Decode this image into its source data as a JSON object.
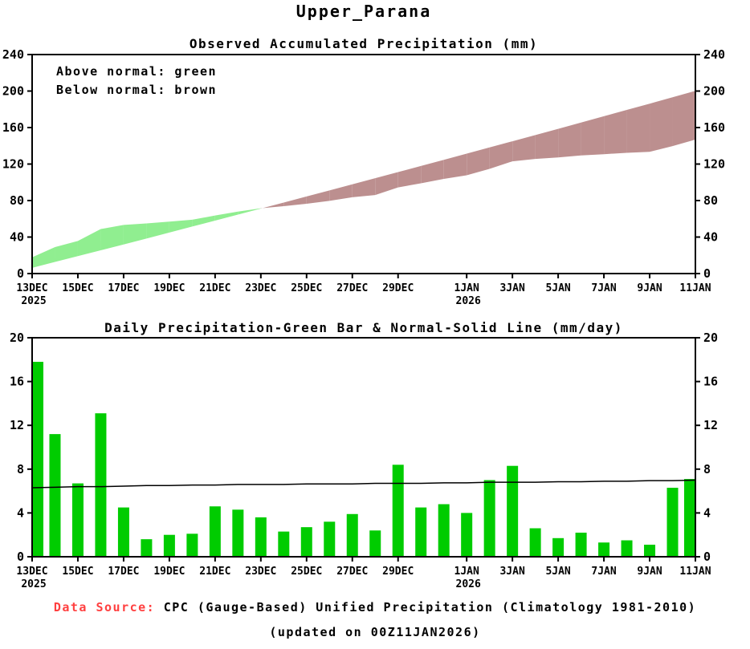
{
  "page_title": "Upper_Parana",
  "footer": {
    "source_label": "Data Source:",
    "source_text": " CPC (Gauge-Based) Unified Precipitation (Climatology 1981-2010)",
    "updated": "(updated on 00Z11JAN2026)"
  },
  "chart_data": [
    {
      "type": "area",
      "title": "Observed Accumulated Precipitation (mm)",
      "legend": [
        "Above normal: green",
        "Below normal: brown"
      ],
      "colors": {
        "above_normal": "#90ee90",
        "below_normal": "#bc8f8f"
      },
      "ylim": [
        0,
        240
      ],
      "yticks": [
        0,
        40,
        80,
        120,
        160,
        200,
        240
      ],
      "dates": [
        "13DEC",
        "14DEC",
        "15DEC",
        "16DEC",
        "17DEC",
        "18DEC",
        "19DEC",
        "20DEC",
        "21DEC",
        "22DEC",
        "23DEC",
        "24DEC",
        "25DEC",
        "26DEC",
        "27DEC",
        "28DEC",
        "29DEC",
        "30DEC",
        "31DEC",
        "1JAN",
        "2JAN",
        "3JAN",
        "4JAN",
        "5JAN",
        "6JAN",
        "7JAN",
        "8JAN",
        "9JAN",
        "10JAN",
        "11JAN"
      ],
      "xticks": [
        {
          "index": 0,
          "label": "13DEC",
          "year": "2025"
        },
        {
          "index": 2,
          "label": "15DEC"
        },
        {
          "index": 4,
          "label": "17DEC"
        },
        {
          "index": 6,
          "label": "19DEC"
        },
        {
          "index": 8,
          "label": "21DEC"
        },
        {
          "index": 10,
          "label": "23DEC"
        },
        {
          "index": 12,
          "label": "25DEC"
        },
        {
          "index": 14,
          "label": "27DEC"
        },
        {
          "index": 16,
          "label": "29DEC"
        },
        {
          "index": 19,
          "label": "1JAN",
          "year": "2026"
        },
        {
          "index": 21,
          "label": "3JAN"
        },
        {
          "index": 23,
          "label": "5JAN"
        },
        {
          "index": 25,
          "label": "7JAN"
        },
        {
          "index": 27,
          "label": "9JAN"
        },
        {
          "index": 29,
          "label": "11JAN"
        }
      ],
      "series": [
        {
          "name": "Observed accumulated precipitation (mm)",
          "values": [
            17.8,
            29.0,
            35.7,
            48.8,
            53.3,
            54.9,
            56.9,
            59.0,
            63.6,
            67.9,
            71.5,
            73.8,
            76.5,
            79.7,
            83.6,
            86.0,
            94.4,
            98.9,
            103.7,
            107.7,
            114.7,
            123.0,
            125.6,
            127.3,
            129.5,
            130.8,
            132.3,
            133.4,
            139.7,
            146.8
          ]
        },
        {
          "name": "Normal accumulated precipitation (mm)",
          "values": [
            6.3,
            12.7,
            19.1,
            25.5,
            31.9,
            38.4,
            44.9,
            51.5,
            58.0,
            64.6,
            71.2,
            77.8,
            84.5,
            91.1,
            97.8,
            104.5,
            111.2,
            117.9,
            124.6,
            131.4,
            138.2,
            145.0,
            151.8,
            158.6,
            165.5,
            172.4,
            179.3,
            186.2,
            193.2,
            200.2
          ]
        }
      ]
    },
    {
      "type": "bar",
      "title": "Daily Precipitation-Green Bar & Normal-Solid Line (mm/day)",
      "colors": {
        "bar": "#00cc00",
        "line": "#000000"
      },
      "ylim": [
        0,
        20
      ],
      "yticks": [
        0,
        4,
        8,
        12,
        16,
        20
      ],
      "dates": [
        "13DEC",
        "14DEC",
        "15DEC",
        "16DEC",
        "17DEC",
        "18DEC",
        "19DEC",
        "20DEC",
        "21DEC",
        "22DEC",
        "23DEC",
        "24DEC",
        "25DEC",
        "26DEC",
        "27DEC",
        "28DEC",
        "29DEC",
        "30DEC",
        "31DEC",
        "1JAN",
        "2JAN",
        "3JAN",
        "4JAN",
        "5JAN",
        "6JAN",
        "7JAN",
        "8JAN",
        "9JAN",
        "10JAN",
        "11JAN"
      ],
      "xticks": [
        {
          "index": 0,
          "label": "13DEC",
          "year": "2025"
        },
        {
          "index": 2,
          "label": "15DEC"
        },
        {
          "index": 4,
          "label": "17DEC"
        },
        {
          "index": 6,
          "label": "19DEC"
        },
        {
          "index": 8,
          "label": "21DEC"
        },
        {
          "index": 10,
          "label": "23DEC"
        },
        {
          "index": 12,
          "label": "25DEC"
        },
        {
          "index": 14,
          "label": "27DEC"
        },
        {
          "index": 16,
          "label": "29DEC"
        },
        {
          "index": 19,
          "label": "1JAN",
          "year": "2026"
        },
        {
          "index": 21,
          "label": "3JAN"
        },
        {
          "index": 23,
          "label": "5JAN"
        },
        {
          "index": 25,
          "label": "7JAN"
        },
        {
          "index": 27,
          "label": "9JAN"
        },
        {
          "index": 29,
          "label": "11JAN"
        }
      ],
      "series": [
        {
          "name": "Daily precipitation (mm/day)",
          "values": [
            17.8,
            11.2,
            6.7,
            13.1,
            4.5,
            1.6,
            2.0,
            2.1,
            4.6,
            4.3,
            3.6,
            2.3,
            2.7,
            3.2,
            3.9,
            2.4,
            8.4,
            4.5,
            4.8,
            4.0,
            7.0,
            8.3,
            2.6,
            1.7,
            2.2,
            1.3,
            1.5,
            1.1,
            6.3,
            7.1
          ]
        },
        {
          "name": "Normal precipitation (mm/day)",
          "values": [
            6.3,
            6.35,
            6.4,
            6.4,
            6.45,
            6.5,
            6.5,
            6.55,
            6.55,
            6.6,
            6.6,
            6.6,
            6.65,
            6.65,
            6.65,
            6.7,
            6.7,
            6.7,
            6.75,
            6.75,
            6.8,
            6.8,
            6.8,
            6.85,
            6.85,
            6.9,
            6.9,
            6.95,
            6.95,
            7.0
          ]
        }
      ]
    }
  ]
}
